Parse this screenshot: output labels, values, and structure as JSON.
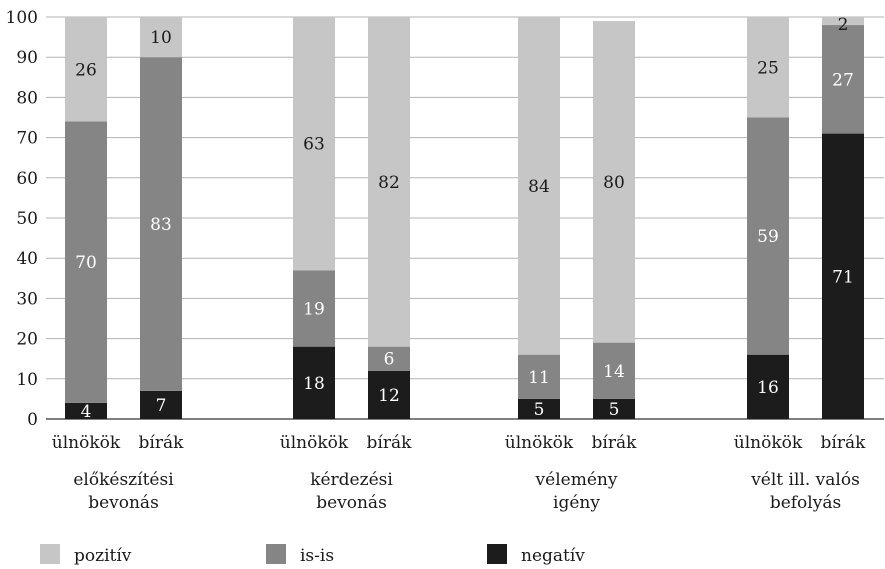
{
  "chart_data": {
    "type": "bar",
    "stacked": true,
    "percent_stacked": true,
    "ylim": [
      0,
      100
    ],
    "yticks": [
      0,
      10,
      20,
      30,
      40,
      50,
      60,
      70,
      80,
      90,
      100
    ],
    "grid": "horizontal",
    "legend_position": "bottom",
    "groups": [
      {
        "label_lines": [
          "előkészítési",
          "bevonás"
        ],
        "bars": [
          "ülnökök",
          "bírák"
        ]
      },
      {
        "label_lines": [
          "kérdezési",
          "bevonás"
        ],
        "bars": [
          "ülnökök",
          "bírák"
        ]
      },
      {
        "label_lines": [
          "vélemény",
          "igény"
        ],
        "bars": [
          "ülnökök",
          "bírák"
        ]
      },
      {
        "label_lines": [
          "vélt ill. valós",
          "befolyás"
        ],
        "bars": [
          "ülnökök",
          "bírák"
        ]
      }
    ],
    "categories": [
      "ülnökök",
      "bírák",
      "ülnökök",
      "bírák",
      "ülnökök",
      "bírák",
      "ülnökök",
      "bírák"
    ],
    "series": [
      {
        "name": "negatív",
        "color": "#1c1c1c",
        "label_color": "#ffffff",
        "values": [
          4,
          7,
          18,
          12,
          5,
          5,
          16,
          71
        ]
      },
      {
        "name": "is-is",
        "color": "#858585",
        "label_color": "#ffffff",
        "values": [
          70,
          83,
          19,
          6,
          11,
          14,
          59,
          27
        ]
      },
      {
        "name": "pozitív",
        "color": "#c6c6c6",
        "label_color": "#1a1a1a",
        "values": [
          26,
          10,
          63,
          82,
          84,
          80,
          25,
          2
        ]
      }
    ],
    "legend_order": [
      "pozitív",
      "is-is",
      "negatív"
    ]
  }
}
